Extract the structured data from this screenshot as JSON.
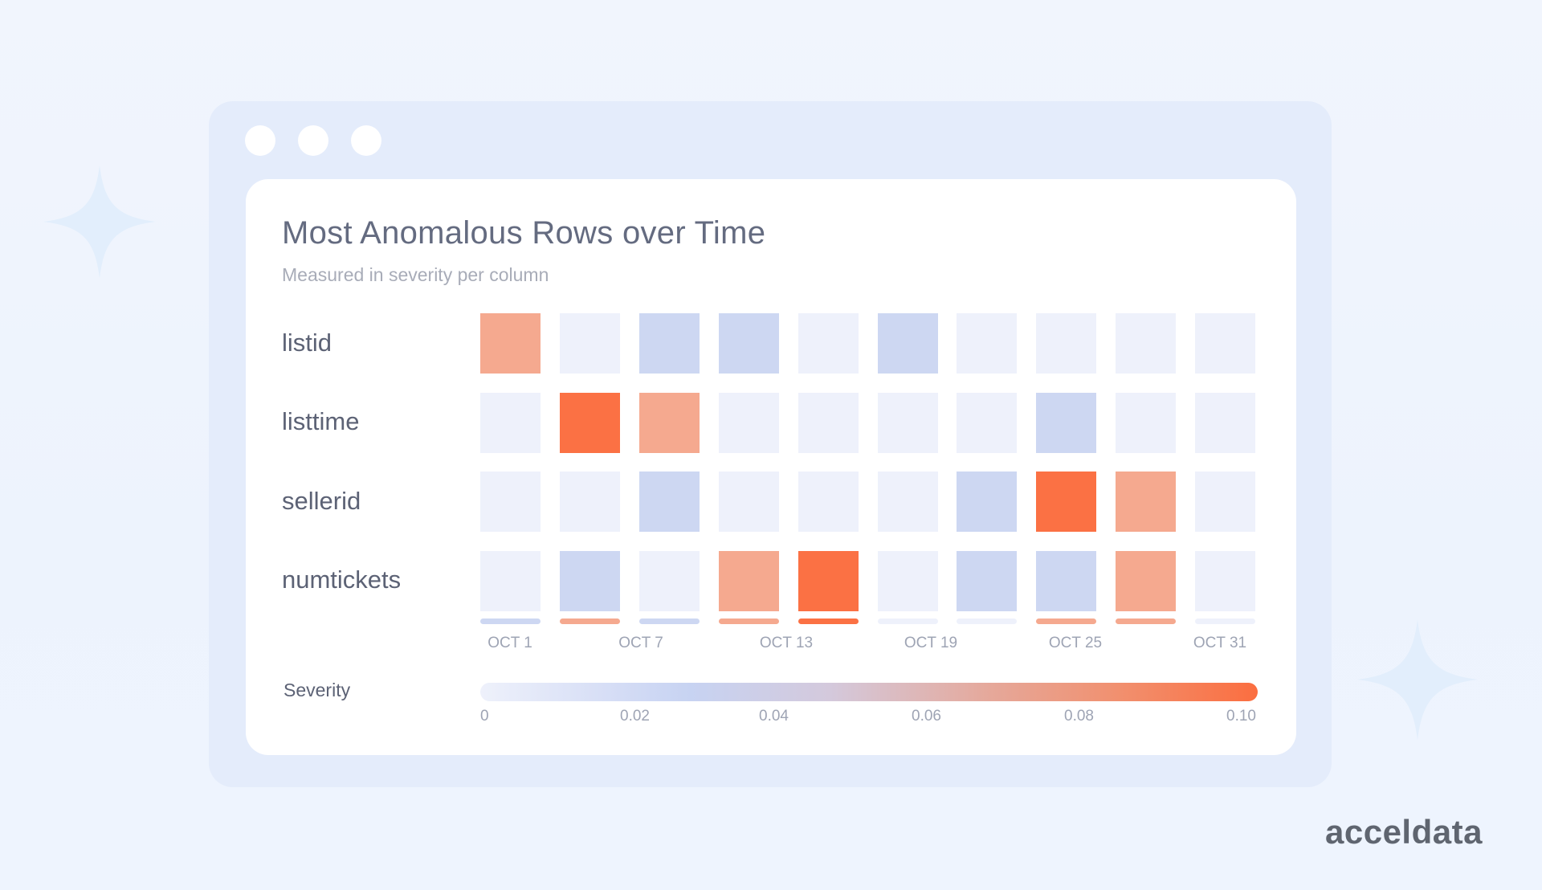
{
  "chart_data": {
    "type": "heatmap",
    "title": "Most Anomalous Rows over Time",
    "subtitle": "Measured in severity per column",
    "rows": [
      "listid",
      "listtime",
      "sellerid",
      "numtickets"
    ],
    "columns_count": 10,
    "x_tick_labels": [
      "OCT 1",
      "OCT 7",
      "OCT 13",
      "OCT 19",
      "OCT 25",
      "OCT 31"
    ],
    "values": [
      [
        0.075,
        0.005,
        0.025,
        0.025,
        0.005,
        0.025,
        0.005,
        0.005,
        0.005,
        0.005
      ],
      [
        0.005,
        0.095,
        0.075,
        0.005,
        0.005,
        0.005,
        0.005,
        0.025,
        0.005,
        0.005
      ],
      [
        0.005,
        0.005,
        0.025,
        0.005,
        0.005,
        0.005,
        0.025,
        0.095,
        0.075,
        0.005
      ],
      [
        0.005,
        0.025,
        0.005,
        0.075,
        0.095,
        0.005,
        0.025,
        0.025,
        0.075,
        0.005
      ]
    ],
    "summary_row": [
      0.025,
      0.075,
      0.025,
      0.075,
      0.095,
      0.005,
      0.005,
      0.075,
      0.075,
      0.005
    ],
    "legend": {
      "label": "Severity",
      "min": 0,
      "max": 0.1,
      "tick_labels": [
        "0",
        "0.02",
        "0.04",
        "0.06",
        "0.08",
        "0.10"
      ]
    },
    "colors": {
      "very_low": "#eef1fb",
      "low": "#cdd7f2",
      "high": "#f5a98f",
      "very_high": "#fb7144"
    }
  },
  "brand": {
    "logo_text": "acceldata"
  }
}
